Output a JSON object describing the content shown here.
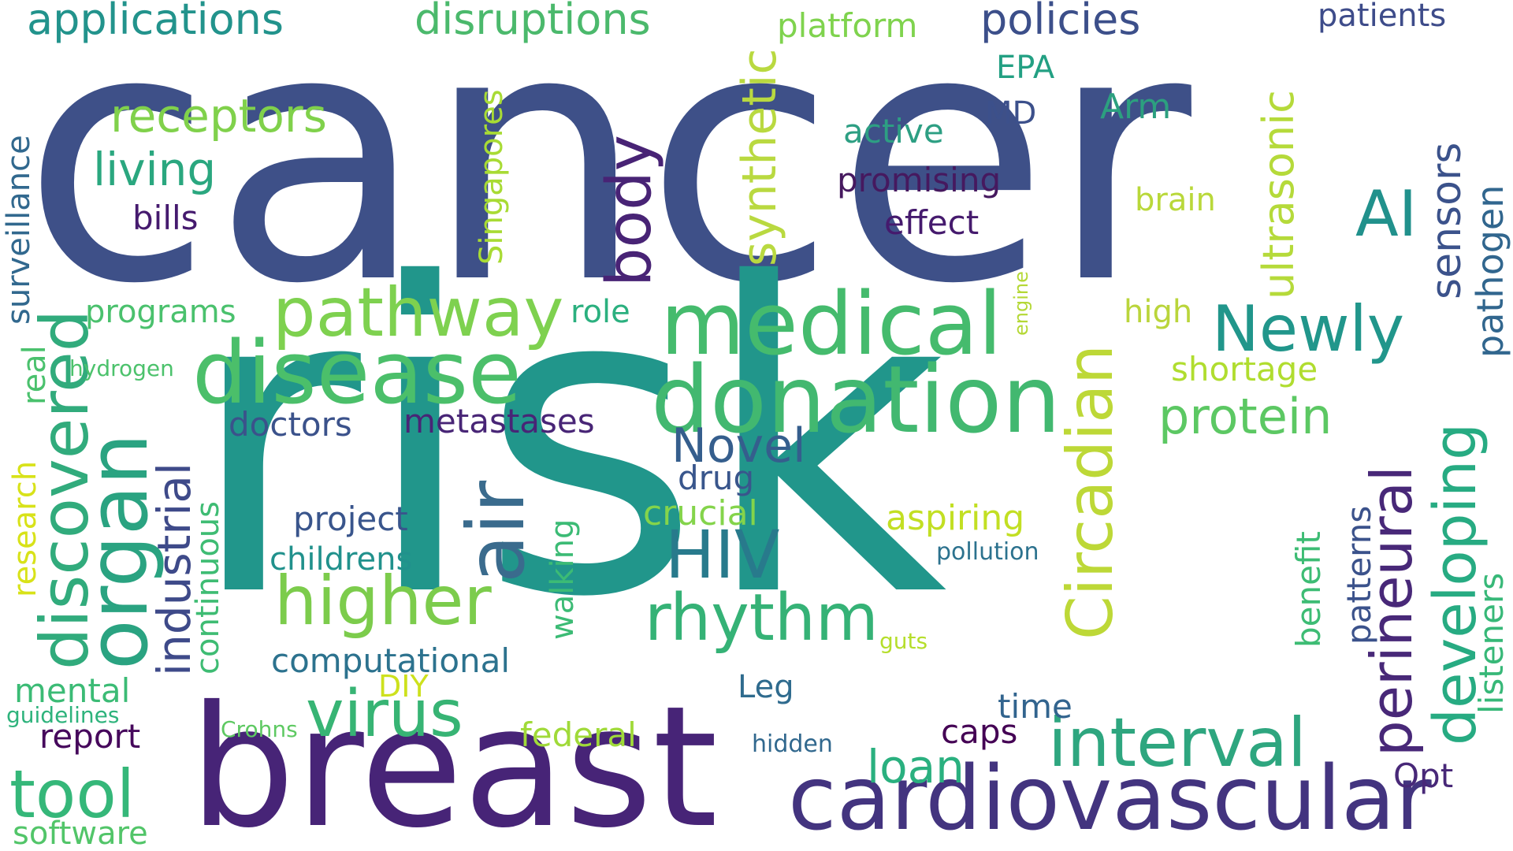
{
  "words": [
    {
      "text": "cancer",
      "color": "#3e5088"
    },
    {
      "text": "risk",
      "color": "#21968b"
    },
    {
      "text": "breast",
      "color": "#472477"
    },
    {
      "text": "cardiovascular",
      "color": "#43347f"
    },
    {
      "text": "medical",
      "color": "#45bb6d"
    },
    {
      "text": "donation",
      "color": "#42b870"
    },
    {
      "text": "disease",
      "color": "#4bbf6a"
    },
    {
      "text": "organ",
      "color": "#2aa381"
    },
    {
      "text": "discovered",
      "color": "#31ab7c"
    },
    {
      "text": "air",
      "color": "#3a6b8d"
    },
    {
      "text": "pathway",
      "color": "#7ed14f"
    },
    {
      "text": "higher",
      "color": "#7ccc4c"
    },
    {
      "text": "rhythm",
      "color": "#35b276"
    },
    {
      "text": "virus",
      "color": "#37b474"
    },
    {
      "text": "interval",
      "color": "#2ea67f"
    },
    {
      "text": "HIV",
      "color": "#287a8c"
    },
    {
      "text": "Circadian",
      "color": "#bdd837"
    },
    {
      "text": "perineural",
      "color": "#482878"
    },
    {
      "text": "developing",
      "color": "#27ab82"
    },
    {
      "text": "Newly",
      "color": "#21968b"
    },
    {
      "text": "AI",
      "color": "#21918c"
    },
    {
      "text": "body",
      "color": "#482375"
    },
    {
      "text": "synthetic",
      "color": "#b9d940"
    },
    {
      "text": "ultrasonic",
      "color": "#b5da3a"
    },
    {
      "text": "applications",
      "color": "#22938c"
    },
    {
      "text": "disruptions",
      "color": "#4bb96c"
    },
    {
      "text": "policies",
      "color": "#3c4f8a"
    },
    {
      "text": "patients",
      "color": "#3e4c8a"
    },
    {
      "text": "platform",
      "color": "#7fd34e"
    },
    {
      "text": "receptors",
      "color": "#80d14b"
    },
    {
      "text": "living",
      "color": "#2aa77f"
    },
    {
      "text": "bills",
      "color": "#451a6e"
    },
    {
      "text": "surveillance",
      "color": "#31688e"
    },
    {
      "text": "Singapores",
      "color": "#a8db34"
    },
    {
      "text": "EPA",
      "color": "#23a083"
    },
    {
      "text": "MD",
      "color": "#3c508b"
    },
    {
      "text": "Arm",
      "color": "#2ca07f"
    },
    {
      "text": "active",
      "color": "#2d9f83"
    },
    {
      "text": "promising",
      "color": "#46195f"
    },
    {
      "text": "effect",
      "color": "#451a6d"
    },
    {
      "text": "brain",
      "color": "#b9d83a"
    },
    {
      "text": "sensors",
      "color": "#3b528b"
    },
    {
      "text": "pathogen",
      "color": "#31668e"
    },
    {
      "text": "engine",
      "color": "#b4d835"
    },
    {
      "text": "high",
      "color": "#bad53b"
    },
    {
      "text": "programs",
      "color": "#4ac16d"
    },
    {
      "text": "role",
      "color": "#2bb07f"
    },
    {
      "text": "shortage",
      "color": "#b0dd2f"
    },
    {
      "text": "protein",
      "color": "#5cc863"
    },
    {
      "text": "hydrogen",
      "color": "#4cc26c"
    },
    {
      "text": "real",
      "color": "#4ac16d"
    },
    {
      "text": "research",
      "color": "#d8e219"
    },
    {
      "text": "doctors",
      "color": "#3b528b"
    },
    {
      "text": "metastases",
      "color": "#482576"
    },
    {
      "text": "industrial",
      "color": "#3e4a89"
    },
    {
      "text": "Novel",
      "color": "#355e8d"
    },
    {
      "text": "drug",
      "color": "#39568c"
    },
    {
      "text": "continuous",
      "color": "#3ebc73"
    },
    {
      "text": "project",
      "color": "#39558c"
    },
    {
      "text": "childrens",
      "color": "#21918c"
    },
    {
      "text": "walking",
      "color": "#3cbb75"
    },
    {
      "text": "crucial",
      "color": "#84d44b"
    },
    {
      "text": "aspiring",
      "color": "#c2df23"
    },
    {
      "text": "pollution",
      "color": "#2c728e"
    },
    {
      "text": "benefit",
      "color": "#3dbc74"
    },
    {
      "text": "patterns",
      "color": "#3b528b"
    },
    {
      "text": "listeners",
      "color": "#37b878"
    },
    {
      "text": "guts",
      "color": "#b5de2b"
    },
    {
      "text": "computational",
      "color": "#2c728e"
    },
    {
      "text": "DIY",
      "color": "#cde11d"
    },
    {
      "text": "Leg",
      "color": "#2f6b8e"
    },
    {
      "text": "mental",
      "color": "#3bbb75"
    },
    {
      "text": "guidelines",
      "color": "#2eb37c"
    },
    {
      "text": "report",
      "color": "#46085c"
    },
    {
      "text": "Crohns",
      "color": "#5ec962"
    },
    {
      "text": "time",
      "color": "#32648e"
    },
    {
      "text": "federal",
      "color": "#a0da39"
    },
    {
      "text": "hidden",
      "color": "#31688e"
    },
    {
      "text": "caps",
      "color": "#440154"
    },
    {
      "text": "Opt",
      "color": "#482878"
    },
    {
      "text": "loan",
      "color": "#2ab07f"
    },
    {
      "text": "tool",
      "color": "#35b779"
    },
    {
      "text": "software",
      "color": "#52c569"
    }
  ]
}
